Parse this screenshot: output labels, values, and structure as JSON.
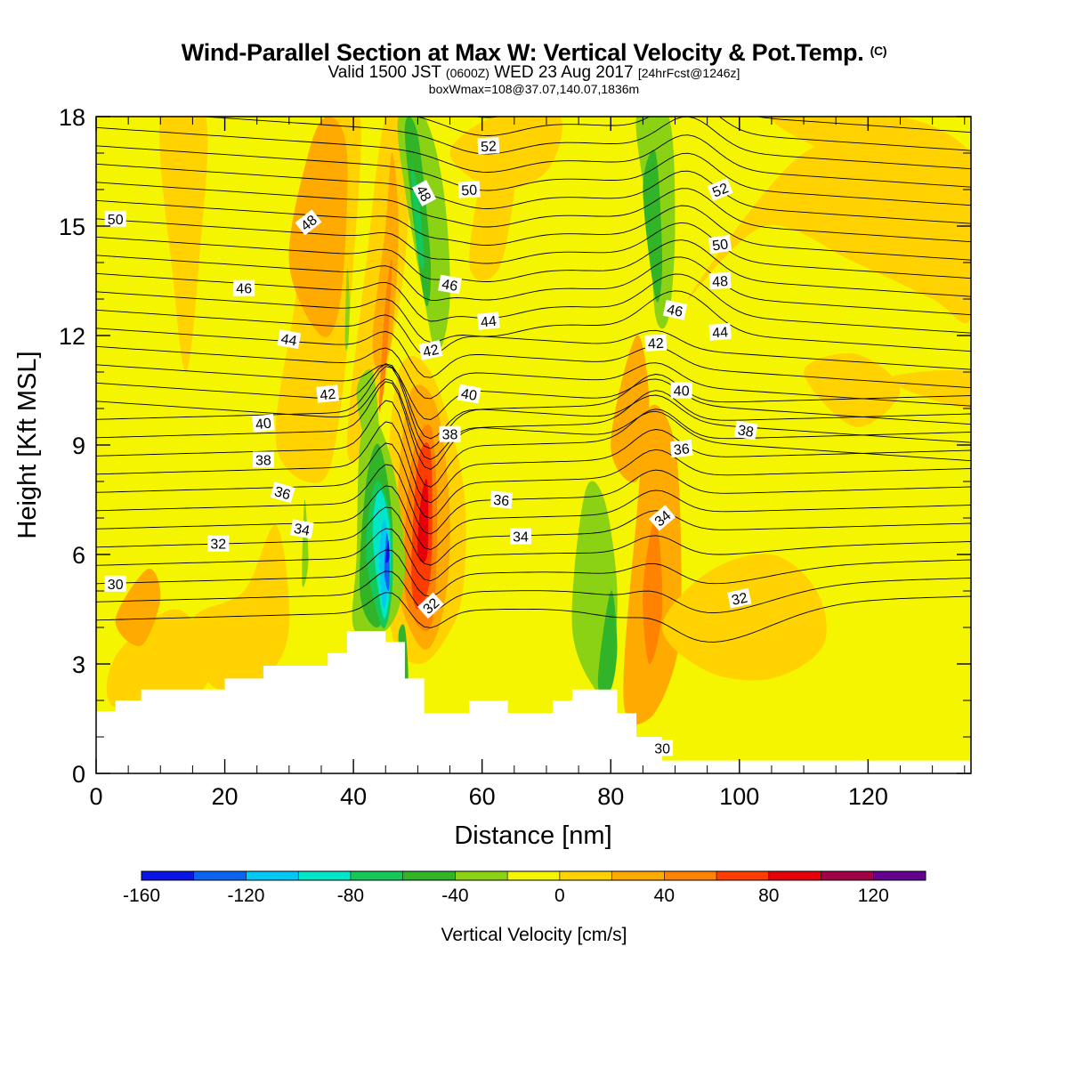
{
  "title": {
    "main": "Wind-Parallel Section at Max W: Vertical Velocity & Pot.Temp.",
    "copyright": "(C)",
    "valid_pre": "Valid 1500 JST",
    "valid_z": "(0600Z)",
    "valid_post": "WED 23 Aug 2017",
    "forecast": "[24hrFcst@1246z]",
    "boxinfo": "boxWmax=108@37.07,140.07,1836m"
  },
  "chart_data": {
    "type": "heatmap",
    "xlabel": "Distance [nm]",
    "ylabel": "Height [Kft MSL]",
    "xlim": [
      0,
      136
    ],
    "ylim": [
      0,
      18
    ],
    "x_ticks": [
      0,
      20,
      40,
      60,
      80,
      100,
      120
    ],
    "y_ticks": [
      0,
      3,
      6,
      9,
      12,
      15,
      18
    ],
    "colorbar": {
      "label": "Vertical Velocity [cm/s]",
      "min": -160,
      "max": 140,
      "step": 20,
      "tick_labels": [
        "-160",
        "-120",
        "-80",
        "-40",
        "0",
        "40",
        "80",
        "120"
      ],
      "colors": [
        "#0a14e6",
        "#0a64f0",
        "#00c8f5",
        "#00e6c8",
        "#14c85a",
        "#32b428",
        "#8cd214",
        "#f5f500",
        "#ffd200",
        "#ffaa00",
        "#ff8200",
        "#ff3c00",
        "#e6000a",
        "#a00046",
        "#64008c"
      ]
    },
    "terrain_profile": [
      [
        0,
        1.7
      ],
      [
        3,
        1.7
      ],
      [
        3,
        2.0
      ],
      [
        7,
        2.0
      ],
      [
        7,
        2.3
      ],
      [
        20,
        2.3
      ],
      [
        20,
        2.6
      ],
      [
        26,
        2.6
      ],
      [
        26,
        2.95
      ],
      [
        36,
        2.95
      ],
      [
        36,
        3.3
      ],
      [
        39,
        3.3
      ],
      [
        39,
        3.9
      ],
      [
        45,
        3.9
      ],
      [
        45,
        3.6
      ],
      [
        48,
        3.6
      ],
      [
        48,
        2.6
      ],
      [
        51,
        2.6
      ],
      [
        51,
        1.65
      ],
      [
        58,
        1.65
      ],
      [
        58,
        2.0
      ],
      [
        64,
        2.0
      ],
      [
        64,
        1.65
      ],
      [
        71,
        1.65
      ],
      [
        71,
        2.0
      ],
      [
        74,
        2.0
      ],
      [
        74,
        2.3
      ],
      [
        81,
        2.3
      ],
      [
        81,
        1.65
      ],
      [
        84,
        1.65
      ],
      [
        84,
        1.0
      ],
      [
        88,
        1.0
      ],
      [
        88,
        0.35
      ],
      [
        136,
        0.35
      ]
    ],
    "contour_labels": [
      {
        "text": "52",
        "x": 61,
        "y": 17.2,
        "angle": -3
      },
      {
        "text": "50",
        "x": 58,
        "y": 16.0,
        "angle": -3
      },
      {
        "text": "48",
        "x": 51,
        "y": 15.9,
        "angle": 62
      },
      {
        "text": "50",
        "x": 3,
        "y": 15.2,
        "angle": 0
      },
      {
        "text": "48",
        "x": 33,
        "y": 15.1,
        "angle": -38
      },
      {
        "text": "46",
        "x": 55,
        "y": 13.4,
        "angle": 10
      },
      {
        "text": "46",
        "x": 23,
        "y": 13.3,
        "angle": 0
      },
      {
        "text": "44",
        "x": 61,
        "y": 12.4,
        "angle": -6
      },
      {
        "text": "44",
        "x": 30,
        "y": 11.9,
        "angle": 10
      },
      {
        "text": "42",
        "x": 52,
        "y": 11.6,
        "angle": -12
      },
      {
        "text": "42",
        "x": 36,
        "y": 10.4,
        "angle": -6
      },
      {
        "text": "40",
        "x": 58,
        "y": 10.4,
        "angle": 10
      },
      {
        "text": "40",
        "x": 26,
        "y": 9.6,
        "angle": -6
      },
      {
        "text": "38",
        "x": 55,
        "y": 9.3,
        "angle": 0
      },
      {
        "text": "38",
        "x": 26,
        "y": 8.6,
        "angle": 0
      },
      {
        "text": "36",
        "x": 29,
        "y": 7.7,
        "angle": 16
      },
      {
        "text": "36",
        "x": 63,
        "y": 7.5,
        "angle": 5
      },
      {
        "text": "34",
        "x": 32,
        "y": 6.7,
        "angle": 10
      },
      {
        "text": "34",
        "x": 66,
        "y": 6.5,
        "angle": 0
      },
      {
        "text": "32",
        "x": 19,
        "y": 6.3,
        "angle": 0
      },
      {
        "text": "32",
        "x": 52,
        "y": 4.6,
        "angle": -42
      },
      {
        "text": "30",
        "x": 3,
        "y": 5.2,
        "angle": 0
      },
      {
        "text": "30",
        "x": 88,
        "y": 0.7,
        "angle": 0
      },
      {
        "text": "52",
        "x": 97,
        "y": 16.0,
        "angle": -22
      },
      {
        "text": "50",
        "x": 97,
        "y": 14.5,
        "angle": -8
      },
      {
        "text": "48",
        "x": 97,
        "y": 13.5,
        "angle": -3
      },
      {
        "text": "46",
        "x": 90,
        "y": 12.7,
        "angle": 12
      },
      {
        "text": "44",
        "x": 97,
        "y": 12.1,
        "angle": -5
      },
      {
        "text": "42",
        "x": 87,
        "y": 11.8,
        "angle": -3
      },
      {
        "text": "40",
        "x": 91,
        "y": 10.5,
        "angle": 0
      },
      {
        "text": "38",
        "x": 101,
        "y": 9.4,
        "angle": 10
      },
      {
        "text": "36",
        "x": 91,
        "y": 8.9,
        "angle": -6
      },
      {
        "text": "34",
        "x": 88,
        "y": 7.0,
        "angle": -40
      },
      {
        "text": "32",
        "x": 100,
        "y": 4.8,
        "angle": -12
      }
    ]
  }
}
